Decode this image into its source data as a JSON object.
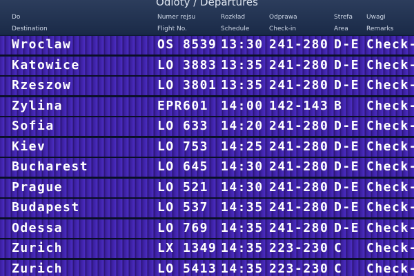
{
  "header": {
    "title": "Odloty / Departures"
  },
  "table": {
    "columns": [
      {
        "pl": "Do",
        "en": "Destination"
      },
      {
        "pl": "Numer rejsu",
        "en": "Flight No."
      },
      {
        "pl": "Rozkład",
        "en": "Schedule"
      },
      {
        "pl": "Odprawa",
        "en": "Check-in"
      },
      {
        "pl": "Strefa",
        "en": "Area"
      },
      {
        "pl": "Uwagi",
        "en": "Remarks"
      }
    ],
    "rows": [
      [
        "Wroclaw",
        "OS 8539",
        "13:30",
        "241-280",
        "D-E",
        "Check-"
      ],
      [
        "Katowice",
        "LO 3883",
        "13:35",
        "241-280",
        "D-E",
        "Check-"
      ],
      [
        "Rzeszow",
        "LO 3801",
        "13:35",
        "241-280",
        "D-E",
        "Check-"
      ],
      [
        "Zylina",
        "EPR601",
        "14:00",
        "142-143",
        "B",
        "Check-"
      ],
      [
        "Sofia",
        "LO 633",
        "14:20",
        "241-280",
        "D-E",
        "Check-"
      ],
      [
        "Kiev",
        "LO 753",
        "14:25",
        "241-280",
        "D-E",
        "Check-"
      ],
      [
        "Bucharest",
        "LO 645",
        "14:30",
        "241-280",
        "D-E",
        "Check-"
      ],
      [
        "Prague",
        "LO 521",
        "14:30",
        "241-280",
        "D-E",
        "Check-"
      ],
      [
        "Budapest",
        "LO 537",
        "14:35",
        "241-280",
        "D-E",
        "Check-"
      ],
      [
        "Odessa",
        "LO 769",
        "14:35",
        "241-280",
        "D-E",
        "Check-"
      ],
      [
        "Zurich",
        "LX 1349",
        "14:35",
        "223-230",
        "C",
        "Check-"
      ],
      [
        "Zurich",
        "LO 5413",
        "14:35",
        "223-230",
        "C",
        "Check-"
      ]
    ]
  }
}
